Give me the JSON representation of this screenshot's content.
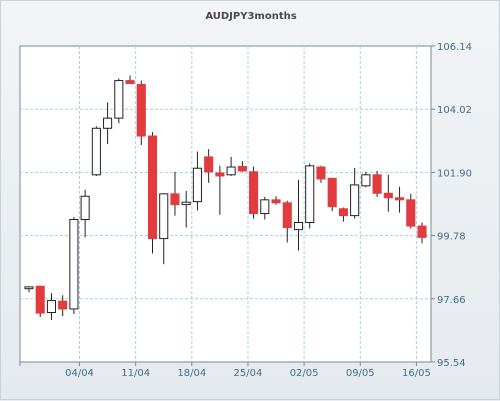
{
  "chart_data": {
    "type": "candlestick",
    "title": "AUDJPY3months",
    "y_ticks": [
      "106.14",
      "104.02",
      "101.90",
      "99.78",
      "97.66",
      "95.54"
    ],
    "ylim": [
      95.54,
      106.14
    ],
    "x_tick_labels": [
      "04/04",
      "11/04",
      "18/04",
      "25/04",
      "02/05",
      "09/05",
      "16/05"
    ],
    "grid": true,
    "colors": {
      "up": "#ffffff",
      "down": "#e23b3e",
      "wick": "#222222",
      "grid": "#9fd2e4"
    },
    "candles": [
      {
        "open": 98.0,
        "high": 98.08,
        "low": 97.88,
        "close": 98.06
      },
      {
        "open": 98.08,
        "high": 98.1,
        "low": 97.05,
        "close": 97.18
      },
      {
        "open": 97.2,
        "high": 97.85,
        "low": 96.95,
        "close": 97.6
      },
      {
        "open": 97.58,
        "high": 97.78,
        "low": 97.08,
        "close": 97.32
      },
      {
        "open": 97.32,
        "high": 100.4,
        "low": 97.15,
        "close": 100.32
      },
      {
        "open": 100.32,
        "high": 101.32,
        "low": 99.72,
        "close": 101.1
      },
      {
        "open": 101.82,
        "high": 103.45,
        "low": 101.78,
        "close": 103.38
      },
      {
        "open": 103.38,
        "high": 104.25,
        "low": 102.85,
        "close": 103.72
      },
      {
        "open": 103.72,
        "high": 105.05,
        "low": 103.55,
        "close": 104.98
      },
      {
        "open": 104.98,
        "high": 105.15,
        "low": 104.92,
        "close": 104.88
      },
      {
        "open": 104.85,
        "high": 104.98,
        "low": 102.82,
        "close": 103.12
      },
      {
        "open": 103.12,
        "high": 103.25,
        "low": 99.18,
        "close": 99.68
      },
      {
        "open": 99.68,
        "high": 101.2,
        "low": 98.82,
        "close": 101.18
      },
      {
        "open": 101.18,
        "high": 101.92,
        "low": 100.45,
        "close": 100.82
      },
      {
        "open": 100.82,
        "high": 101.28,
        "low": 100.05,
        "close": 100.9
      },
      {
        "open": 100.92,
        "high": 102.6,
        "low": 100.62,
        "close": 102.04
      },
      {
        "open": 102.42,
        "high": 102.68,
        "low": 101.55,
        "close": 101.92
      },
      {
        "open": 101.88,
        "high": 102.12,
        "low": 100.48,
        "close": 101.78
      },
      {
        "open": 101.82,
        "high": 102.42,
        "low": 101.78,
        "close": 102.08
      },
      {
        "open": 102.1,
        "high": 102.28,
        "low": 101.92,
        "close": 101.95
      },
      {
        "open": 101.92,
        "high": 102.1,
        "low": 100.35,
        "close": 100.52
      },
      {
        "open": 100.52,
        "high": 101.08,
        "low": 100.32,
        "close": 100.98
      },
      {
        "open": 100.98,
        "high": 101.1,
        "low": 100.82,
        "close": 100.88
      },
      {
        "open": 100.88,
        "high": 100.95,
        "low": 99.55,
        "close": 100.05
      },
      {
        "open": 99.98,
        "high": 101.65,
        "low": 99.28,
        "close": 100.22
      },
      {
        "open": 100.22,
        "high": 102.2,
        "low": 100.02,
        "close": 102.12
      },
      {
        "open": 102.08,
        "high": 102.12,
        "low": 101.55,
        "close": 101.68
      },
      {
        "open": 101.7,
        "high": 101.72,
        "low": 100.6,
        "close": 100.75
      },
      {
        "open": 100.68,
        "high": 100.72,
        "low": 100.25,
        "close": 100.45
      },
      {
        "open": 100.45,
        "high": 102.05,
        "low": 100.35,
        "close": 101.48
      },
      {
        "open": 101.45,
        "high": 101.92,
        "low": 101.4,
        "close": 101.82
      },
      {
        "open": 101.82,
        "high": 101.95,
        "low": 101.08,
        "close": 101.2
      },
      {
        "open": 101.2,
        "high": 101.82,
        "low": 100.58,
        "close": 101.05
      },
      {
        "open": 101.05,
        "high": 101.42,
        "low": 100.55,
        "close": 100.98
      },
      {
        "open": 100.98,
        "high": 101.18,
        "low": 100.02,
        "close": 100.1
      },
      {
        "open": 100.1,
        "high": 100.22,
        "low": 99.52,
        "close": 99.72
      }
    ]
  }
}
